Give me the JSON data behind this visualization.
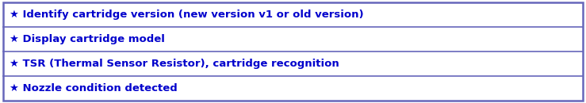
{
  "rows": [
    "★ Identify cartridge version (new version v1 or old version)",
    "★ Display cartridge model",
    "★ TSR (Thermal Sensor Resistor), cartridge recognition",
    "★ Nozzle condition detected"
  ],
  "text_color": "#0000CC",
  "border_color": "#6666BB",
  "bg_color": "#FFFFFF",
  "outer_bg": "#FFFFFF",
  "font_size": 9.5,
  "font_weight": "bold",
  "font_family": "DejaVu Sans"
}
